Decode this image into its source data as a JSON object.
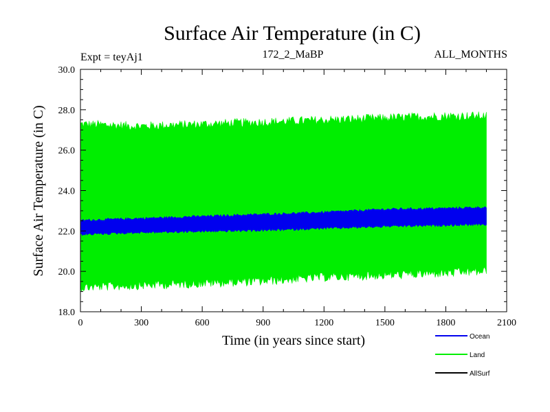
{
  "chart_data": {
    "type": "line",
    "title": "Surface Air Temperature (in C)",
    "expt_label": "Expt = teyAj1",
    "run_label": "172_2_MaBP",
    "period_label": "ALL_MONTHS",
    "xlabel": "Time (in years since start)",
    "ylabel": "Surface Air Temperature (in C)",
    "xlim": [
      0,
      2100
    ],
    "ylim": [
      18.0,
      30.0
    ],
    "xticks": [
      0,
      300,
      600,
      900,
      1200,
      1500,
      1800,
      2100
    ],
    "yticks": [
      "18.0",
      "20.0",
      "22.0",
      "24.0",
      "26.0",
      "28.0",
      "30.0"
    ],
    "x_end": 2000,
    "series": [
      {
        "name": "Land",
        "color": "#00ee00",
        "band_upper": [
          [
            0,
            27.2
          ],
          [
            300,
            27.1
          ],
          [
            600,
            27.2
          ],
          [
            900,
            27.3
          ],
          [
            1200,
            27.4
          ],
          [
            1500,
            27.5
          ],
          [
            1800,
            27.6
          ],
          [
            2000,
            27.6
          ]
        ],
        "band_lower": [
          [
            0,
            19.3
          ],
          [
            300,
            19.4
          ],
          [
            600,
            19.5
          ],
          [
            900,
            19.6
          ],
          [
            1200,
            19.8
          ],
          [
            1500,
            19.9
          ],
          [
            1800,
            20.0
          ],
          [
            2000,
            20.1
          ]
        ],
        "noise": 0.45
      },
      {
        "name": "Ocean",
        "color": "#0000ee",
        "band_upper": [
          [
            0,
            22.5
          ],
          [
            300,
            22.6
          ],
          [
            600,
            22.7
          ],
          [
            900,
            22.8
          ],
          [
            1200,
            22.9
          ],
          [
            1500,
            23.05
          ],
          [
            1800,
            23.1
          ],
          [
            2000,
            23.15
          ]
        ],
        "band_lower": [
          [
            0,
            21.85
          ],
          [
            300,
            21.95
          ],
          [
            600,
            22.0
          ],
          [
            900,
            22.05
          ],
          [
            1200,
            22.15
          ],
          [
            1500,
            22.25
          ],
          [
            1800,
            22.3
          ],
          [
            2000,
            22.35
          ]
        ],
        "noise": 0.12
      },
      {
        "name": "AllSurf",
        "color": "#000000"
      }
    ]
  }
}
